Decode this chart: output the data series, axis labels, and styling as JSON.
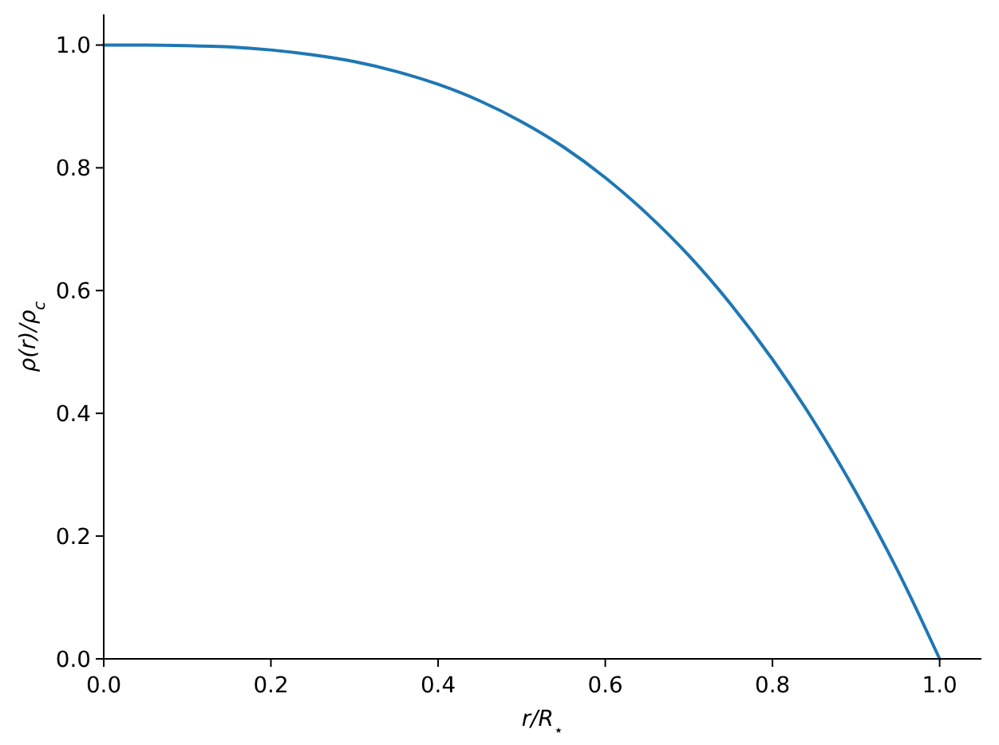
{
  "chart_data": {
    "type": "line",
    "xlabel": "r/R$_{⋆}$",
    "ylabel": "ρ(r)/ρ$_{c}$",
    "x": [
      0,
      0.05,
      0.1,
      0.15,
      0.2,
      0.25,
      0.3,
      0.35,
      0.4,
      0.45,
      0.5,
      0.55,
      0.6,
      0.65,
      0.7,
      0.75,
      0.8,
      0.85,
      0.9,
      0.95,
      0.975,
      1.0
    ],
    "series": [
      {
        "color": "#1f77b4",
        "values": [
          1.0,
          1.0,
          0.999,
          0.997,
          0.992,
          0.984,
          0.973,
          0.957,
          0.936,
          0.909,
          0.875,
          0.834,
          0.784,
          0.725,
          0.657,
          0.578,
          0.488,
          0.386,
          0.271,
          0.143,
          0.073,
          0.0
        ]
      }
    ],
    "xlim": [
      0,
      1.05
    ],
    "ylim": [
      0,
      1.05
    ],
    "xticks": [
      {
        "value": 0,
        "label": "0.0"
      },
      0.2,
      0.4,
      0.6,
      0.8,
      {
        "value": 1,
        "label": "1.0"
      }
    ],
    "yticks": [
      {
        "value": 0,
        "label": "0.0"
      },
      0.2,
      0.4,
      0.6,
      0.8,
      {
        "value": 1,
        "label": "1.0"
      }
    ]
  }
}
